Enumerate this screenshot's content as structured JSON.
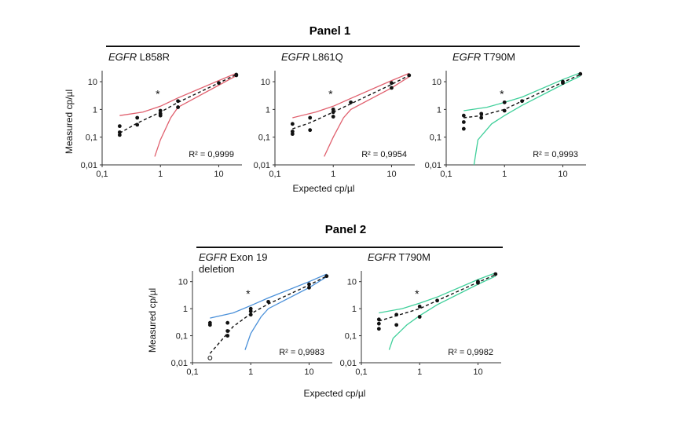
{
  "panels": [
    {
      "title": "Panel 1",
      "xlabel": "Expected cp/µl",
      "ylabel": "Measured cp/µl"
    },
    {
      "title": "Panel 2",
      "xlabel": "Expected cp/µl",
      "ylabel": "Measured cp/µl"
    }
  ],
  "chart_data": [
    {
      "type": "scatter",
      "panel": 1,
      "title_italic": "EGFR",
      "title_rest": "L858R",
      "annotation": "R² = 0,9999",
      "star_label": "*",
      "color": "#e0606e",
      "xscale": "log",
      "yscale": "log",
      "xlim": [
        0.1,
        25
      ],
      "ylim": [
        0.01,
        25
      ],
      "xticks": [
        "0,1",
        "1",
        "10"
      ],
      "yticks": [
        "0,01",
        "0,1",
        "1",
        "10"
      ],
      "points": [
        [
          0.2,
          0.25
        ],
        [
          0.2,
          0.15
        ],
        [
          0.2,
          0.12
        ],
        [
          0.4,
          0.5
        ],
        [
          0.4,
          0.28
        ],
        [
          1,
          0.9
        ],
        [
          1,
          0.7
        ],
        [
          1,
          0.6
        ],
        [
          2,
          2.0
        ],
        [
          2,
          1.2
        ],
        [
          10,
          9
        ],
        [
          20,
          18
        ],
        [
          20,
          17
        ]
      ],
      "fit": [
        [
          0.2,
          0.14
        ],
        [
          0.4,
          0.32
        ],
        [
          1,
          0.8
        ],
        [
          2,
          1.8
        ],
        [
          10,
          9
        ],
        [
          20,
          18
        ]
      ],
      "upper": [
        [
          0.2,
          0.6
        ],
        [
          0.5,
          0.8
        ],
        [
          1,
          1.3
        ],
        [
          2,
          2.6
        ],
        [
          10,
          11
        ],
        [
          20,
          20
        ]
      ],
      "lower": [
        [
          0.8,
          0.02
        ],
        [
          1,
          0.08
        ],
        [
          1.5,
          0.5
        ],
        [
          2,
          1.2
        ],
        [
          10,
          7.5
        ],
        [
          20,
          16.5
        ]
      ]
    },
    {
      "type": "scatter",
      "panel": 1,
      "title_italic": "EGFR",
      "title_rest": "L861Q",
      "annotation": "R² = 0,9954",
      "star_label": "*",
      "color": "#e0606e",
      "xscale": "log",
      "yscale": "log",
      "xlim": [
        0.1,
        25
      ],
      "ylim": [
        0.01,
        25
      ],
      "xticks": [
        "0,1",
        "1",
        "10"
      ],
      "yticks": [
        "0,01",
        "0,1",
        "1",
        "10"
      ],
      "points": [
        [
          0.2,
          0.3
        ],
        [
          0.2,
          0.16
        ],
        [
          0.2,
          0.13
        ],
        [
          0.4,
          0.5
        ],
        [
          0.4,
          0.18
        ],
        [
          1,
          1.0
        ],
        [
          1,
          0.8
        ],
        [
          1,
          0.55
        ],
        [
          2,
          1.8
        ],
        [
          10,
          9
        ],
        [
          10,
          6
        ],
        [
          20,
          17
        ]
      ],
      "fit": [
        [
          0.2,
          0.2
        ],
        [
          0.4,
          0.33
        ],
        [
          1,
          0.8
        ],
        [
          2,
          1.6
        ],
        [
          10,
          8
        ],
        [
          20,
          17
        ]
      ],
      "upper": [
        [
          0.2,
          0.5
        ],
        [
          0.5,
          0.8
        ],
        [
          1,
          1.3
        ],
        [
          2,
          2.5
        ],
        [
          10,
          11
        ],
        [
          20,
          20
        ]
      ],
      "lower": [
        [
          0.7,
          0.02
        ],
        [
          1,
          0.1
        ],
        [
          1.5,
          0.5
        ],
        [
          2,
          1.0
        ],
        [
          10,
          6
        ],
        [
          20,
          15
        ]
      ]
    },
    {
      "type": "scatter",
      "panel": 1,
      "title_italic": "EGFR",
      "title_rest": "T790M",
      "annotation": "R² = 0,9993",
      "star_label": "*",
      "color": "#3fcf9a",
      "xscale": "log",
      "yscale": "log",
      "xlim": [
        0.1,
        25
      ],
      "ylim": [
        0.01,
        25
      ],
      "xticks": [
        "0,1",
        "1",
        "10"
      ],
      "yticks": [
        "0,01",
        "0,1",
        "1",
        "10"
      ],
      "points": [
        [
          0.2,
          0.6
        ],
        [
          0.2,
          0.35
        ],
        [
          0.2,
          0.2
        ],
        [
          0.4,
          0.7
        ],
        [
          0.4,
          0.5
        ],
        [
          1,
          1.8
        ],
        [
          1,
          0.9
        ],
        [
          2,
          2.0
        ],
        [
          10,
          10
        ],
        [
          10,
          9
        ],
        [
          20,
          19
        ]
      ],
      "fit": [
        [
          0.2,
          0.5
        ],
        [
          0.4,
          0.6
        ],
        [
          1,
          1.0
        ],
        [
          2,
          2.0
        ],
        [
          10,
          9.5
        ],
        [
          20,
          18
        ]
      ],
      "upper": [
        [
          0.2,
          0.9
        ],
        [
          0.5,
          1.2
        ],
        [
          1,
          1.8
        ],
        [
          2,
          2.8
        ],
        [
          10,
          12
        ],
        [
          20,
          21
        ]
      ],
      "lower": [
        [
          0.3,
          0.01
        ],
        [
          0.35,
          0.08
        ],
        [
          0.6,
          0.3
        ],
        [
          1,
          0.6
        ],
        [
          2,
          1.4
        ],
        [
          10,
          8
        ],
        [
          20,
          16
        ]
      ]
    },
    {
      "type": "scatter",
      "panel": 2,
      "title_italic": "EGFR",
      "title_rest": "Exon 19",
      "title_line2": "deletion",
      "annotation": "R² = 0,9983",
      "star_label": "*",
      "color": "#4a90d9",
      "xscale": "log",
      "yscale": "log",
      "xlim": [
        0.1,
        25
      ],
      "ylim": [
        0.01,
        25
      ],
      "xticks": [
        "0,1",
        "1",
        "10"
      ],
      "yticks": [
        "0,01",
        "0,1",
        "1",
        "10"
      ],
      "points": [
        [
          0.2,
          0.3
        ],
        [
          0.2,
          0.25
        ],
        [
          0.4,
          0.3
        ],
        [
          0.4,
          0.15
        ],
        [
          0.4,
          0.1
        ],
        [
          1,
          1.0
        ],
        [
          1,
          0.8
        ],
        [
          1,
          0.6
        ],
        [
          2,
          1.8
        ],
        [
          10,
          8
        ],
        [
          10,
          6
        ],
        [
          20,
          16
        ]
      ],
      "open_points": [
        [
          0.2,
          0.015
        ]
      ],
      "fit": [
        [
          0.2,
          0.022
        ],
        [
          0.3,
          0.06
        ],
        [
          0.5,
          0.22
        ],
        [
          1,
          0.65
        ],
        [
          2,
          1.5
        ],
        [
          10,
          7.5
        ],
        [
          20,
          16
        ]
      ],
      "upper": [
        [
          0.2,
          0.45
        ],
        [
          0.5,
          0.7
        ],
        [
          1,
          1.3
        ],
        [
          2,
          2.5
        ],
        [
          10,
          10
        ],
        [
          20,
          19
        ]
      ],
      "lower": [
        [
          0.8,
          0.03
        ],
        [
          1,
          0.12
        ],
        [
          1.5,
          0.5
        ],
        [
          2,
          1.0
        ],
        [
          10,
          6
        ],
        [
          20,
          15
        ]
      ]
    },
    {
      "type": "scatter",
      "panel": 2,
      "title_italic": "EGFR",
      "title_rest": "T790M",
      "annotation": "R² = 0,9982",
      "star_label": "*",
      "color": "#3fcf9a",
      "xscale": "log",
      "yscale": "log",
      "xlim": [
        0.1,
        25
      ],
      "ylim": [
        0.01,
        25
      ],
      "xticks": [
        "0,1",
        "1",
        "10"
      ],
      "yticks": [
        "0,01",
        "0,1",
        "1",
        "10"
      ],
      "points": [
        [
          0.2,
          0.4
        ],
        [
          0.2,
          0.28
        ],
        [
          0.2,
          0.18
        ],
        [
          0.4,
          0.6
        ],
        [
          0.4,
          0.25
        ],
        [
          1,
          1.2
        ],
        [
          1,
          0.5
        ],
        [
          2,
          2.0
        ],
        [
          10,
          10
        ],
        [
          10,
          9
        ],
        [
          20,
          19
        ]
      ],
      "fit": [
        [
          0.2,
          0.35
        ],
        [
          0.4,
          0.55
        ],
        [
          1,
          1.0
        ],
        [
          2,
          2.0
        ],
        [
          10,
          9.5
        ],
        [
          20,
          18
        ]
      ],
      "upper": [
        [
          0.2,
          0.7
        ],
        [
          0.5,
          1.0
        ],
        [
          1,
          1.6
        ],
        [
          2,
          2.7
        ],
        [
          10,
          12
        ],
        [
          20,
          21
        ]
      ],
      "lower": [
        [
          0.3,
          0.03
        ],
        [
          0.35,
          0.08
        ],
        [
          0.6,
          0.25
        ],
        [
          1,
          0.55
        ],
        [
          2,
          1.4
        ],
        [
          10,
          8
        ],
        [
          20,
          16
        ]
      ]
    }
  ]
}
